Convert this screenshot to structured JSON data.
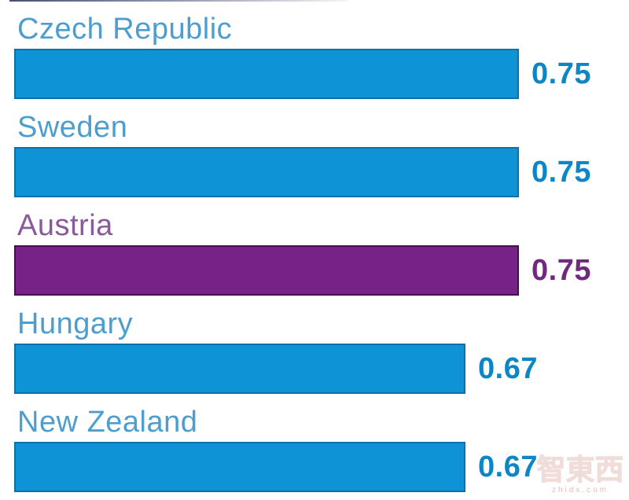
{
  "chart_data": {
    "type": "bar",
    "orientation": "horizontal",
    "title": "",
    "xlabel": "",
    "ylabel": "",
    "xlim": [
      0,
      0.9
    ],
    "grid": false,
    "legend": false,
    "categories": [
      "Czech Republic",
      "Sweden",
      "Austria",
      "Hungary",
      "New Zealand"
    ],
    "values": [
      0.75,
      0.75,
      0.75,
      0.67,
      0.67
    ],
    "highlight_category": "Austria",
    "colors": {
      "bar_default": "#0E94D6",
      "bar_border_default": "rgba(13,80,125,0.5)",
      "bar_highlight": "#772287",
      "bar_border_highlight": "rgba(48,8,52,0.7)",
      "label_default": "#4C9ECF",
      "label_highlight": "#8A5A9C",
      "value_default": "#0C86C5",
      "value_highlight": "#6F2A7D"
    },
    "rows": [
      {
        "label": "Czech Republic",
        "value": 0.75,
        "value_label": "0.75",
        "theme": "blue"
      },
      {
        "label": "Sweden",
        "value": 0.75,
        "value_label": "0.75",
        "theme": "blue"
      },
      {
        "label": "Austria",
        "value": 0.75,
        "value_label": "0.75",
        "theme": "purple"
      },
      {
        "label": "Hungary",
        "value": 0.67,
        "value_label": "0.67",
        "theme": "blue"
      },
      {
        "label": "New Zealand",
        "value": 0.67,
        "value_label": "0.67",
        "theme": "blue"
      }
    ]
  },
  "watermark": {
    "text": "智東西",
    "url": "zhidx.com"
  }
}
